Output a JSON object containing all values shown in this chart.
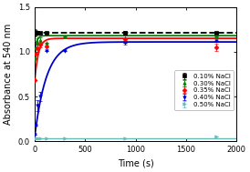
{
  "title": "",
  "xlabel": "Time (s)",
  "ylabel": "Absorbance at 540 nm",
  "xlim": [
    0,
    2000
  ],
  "ylim": [
    0,
    1.5
  ],
  "yticks": [
    0.0,
    0.5,
    1.0,
    1.5
  ],
  "xticks": [
    0,
    500,
    1000,
    1500,
    2000
  ],
  "series": [
    {
      "label": "0.10% NaCl",
      "color": "#000000",
      "linestyle": "--",
      "marker": "s",
      "markersize": 2.5,
      "linewidth": 1.3,
      "curve_A": 0.0,
      "curve_k": 0.0,
      "curve_b": 1.21,
      "data_x": [
        5,
        15,
        30,
        60,
        120,
        900,
        1800
      ],
      "data_y": [
        1.21,
        1.21,
        1.21,
        1.21,
        1.21,
        1.21,
        1.21
      ],
      "yerr": [
        0.04,
        0.03,
        0.02,
        0.01,
        0.01,
        0.02,
        0.01
      ]
    },
    {
      "label": "0.30% NaCl",
      "color": "#008000",
      "linestyle": "-",
      "marker": "^",
      "markersize": 2.5,
      "linewidth": 1.3,
      "curve_A": 0.27,
      "curve_k": 0.06,
      "curve_b": 0.91,
      "data_x": [
        5,
        15,
        30,
        60,
        120,
        300,
        1800
      ],
      "data_y": [
        0.93,
        1.05,
        1.1,
        1.13,
        1.1,
        1.17,
        1.17
      ],
      "yerr": [
        0.0,
        0.07,
        0.05,
        0.03,
        0.0,
        0.0,
        0.0
      ]
    },
    {
      "label": "0.35% NaCl",
      "color": "#ff0000",
      "linestyle": "-",
      "marker": "D",
      "markersize": 2.5,
      "linewidth": 1.3,
      "curve_A": 0.52,
      "curve_k": 0.028,
      "curve_b": 0.63,
      "data_x": [
        5,
        15,
        30,
        60,
        120,
        900,
        1800
      ],
      "data_y": [
        0.68,
        0.98,
        1.04,
        1.08,
        1.06,
        1.14,
        1.05
      ],
      "yerr": [
        0.0,
        0.05,
        0.04,
        0.03,
        0.0,
        0.06,
        0.04
      ]
    },
    {
      "label": "0.40% NaCl",
      "color": "#0000cc",
      "linestyle": "-",
      "marker": "v",
      "markersize": 2.5,
      "linewidth": 1.3,
      "curve_A": 1.08,
      "curve_k": 0.0085,
      "curve_b": 0.03,
      "data_x": [
        5,
        15,
        30,
        60,
        120,
        300,
        900,
        1800
      ],
      "data_y": [
        0.08,
        0.18,
        0.4,
        0.5,
        1.01,
        1.01,
        1.1,
        1.12
      ],
      "yerr": [
        0.0,
        0.0,
        0.06,
        0.05,
        0.0,
        0.0,
        0.0,
        0.0
      ]
    },
    {
      "label": "0.50% NaCl",
      "color": "#66bbbb",
      "linestyle": "-",
      "marker": ">",
      "markersize": 2.5,
      "linewidth": 1.0,
      "curve_A": 0.0,
      "curve_k": 0.0,
      "curve_b": 0.03,
      "data_x": [
        5,
        15,
        30,
        60,
        120,
        300,
        900,
        1800
      ],
      "data_y": [
        0.03,
        0.03,
        0.03,
        0.03,
        0.03,
        0.03,
        0.03,
        0.05
      ],
      "yerr": [
        0.0,
        0.0,
        0.0,
        0.0,
        0.0,
        0.0,
        0.0,
        0.0
      ]
    }
  ],
  "background_color": "#f0f0f0",
  "legend_fontsize": 5.0,
  "axis_fontsize": 7,
  "tick_fontsize": 6
}
